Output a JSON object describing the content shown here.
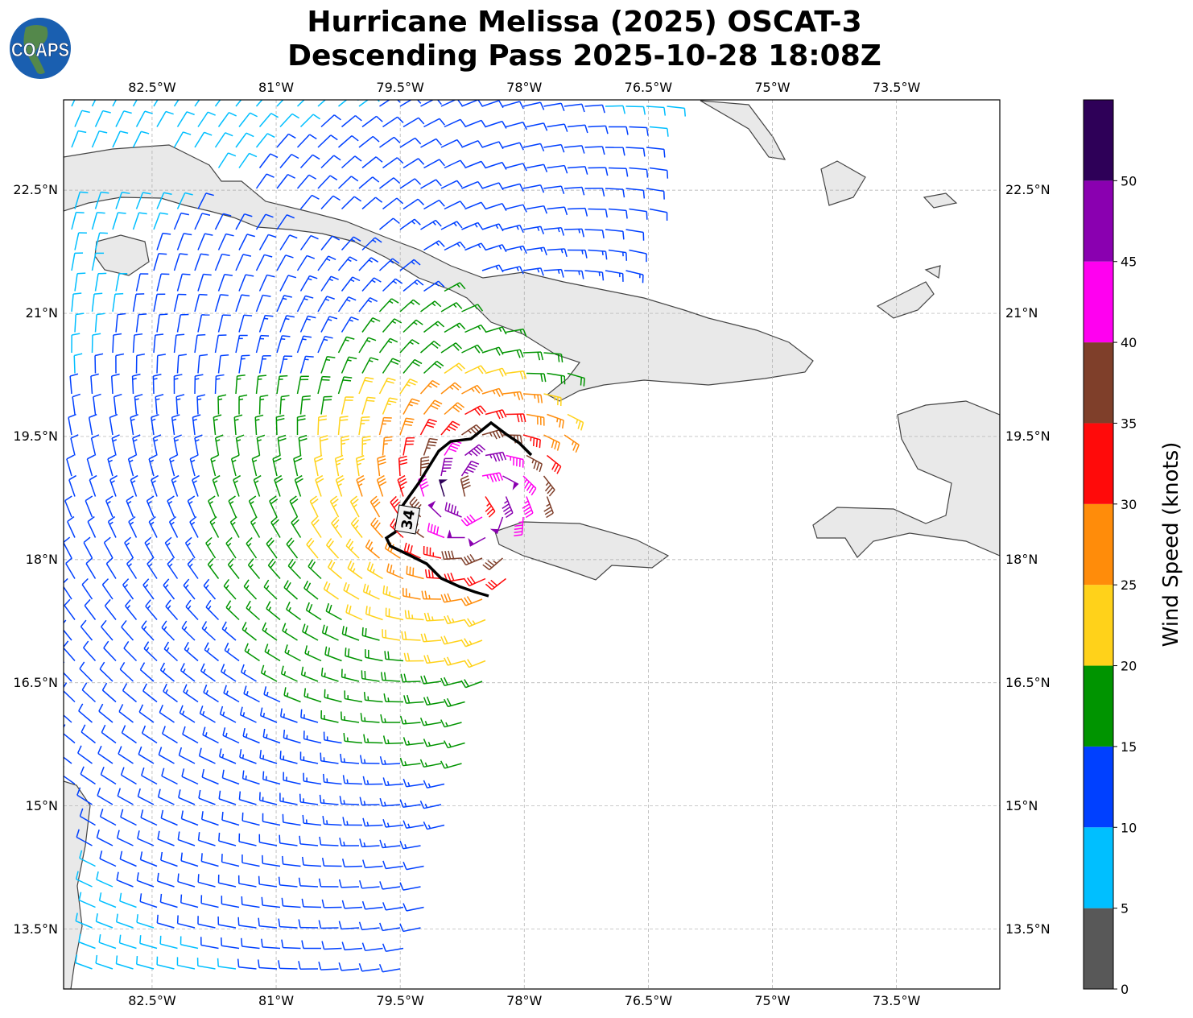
{
  "header": {
    "title_line1": "Hurricane Melissa (2025) OSCAT-3",
    "title_line2": "Descending Pass 2025-10-28 18:08Z",
    "logo_text": "COAPS"
  },
  "map": {
    "lon_ticks": [
      "82.5°W",
      "81°W",
      "79.5°W",
      "78°W",
      "76.5°W",
      "75°W",
      "73.5°W"
    ],
    "lat_ticks": [
      "22.5°N",
      "21°N",
      "19.5°N",
      "18°N",
      "16.5°N",
      "15°N",
      "13.5°N"
    ],
    "lon_values": [
      -82.5,
      -81,
      -79.5,
      -78,
      -76.5,
      -75,
      -73.5
    ],
    "lat_values": [
      22.5,
      21,
      19.5,
      18,
      16.5,
      15,
      13.5
    ],
    "extent": {
      "lon": [
        -83.57,
        -72.25
      ],
      "lat": [
        12.77,
        23.6
      ]
    },
    "gridlines": true,
    "contour_label": "34",
    "storm_center_approx": {
      "lon": -78.55,
      "lat": 18.75
    }
  },
  "colorbar": {
    "label": "Wind Speed (knots)",
    "ticks": [
      "0",
      "5",
      "10",
      "15",
      "20",
      "25",
      "30",
      "35",
      "40",
      "45",
      "50"
    ],
    "range": [
      0,
      55
    ],
    "bin_size": 5,
    "colors": [
      "#585858",
      "#00bfff",
      "#0040ff",
      "#009400",
      "#ffd21a",
      "#ff8c0a",
      "#ff0a0a",
      "#7f3f2a",
      "#ff00f0",
      "#8a00b0",
      "#2e0058"
    ]
  }
}
